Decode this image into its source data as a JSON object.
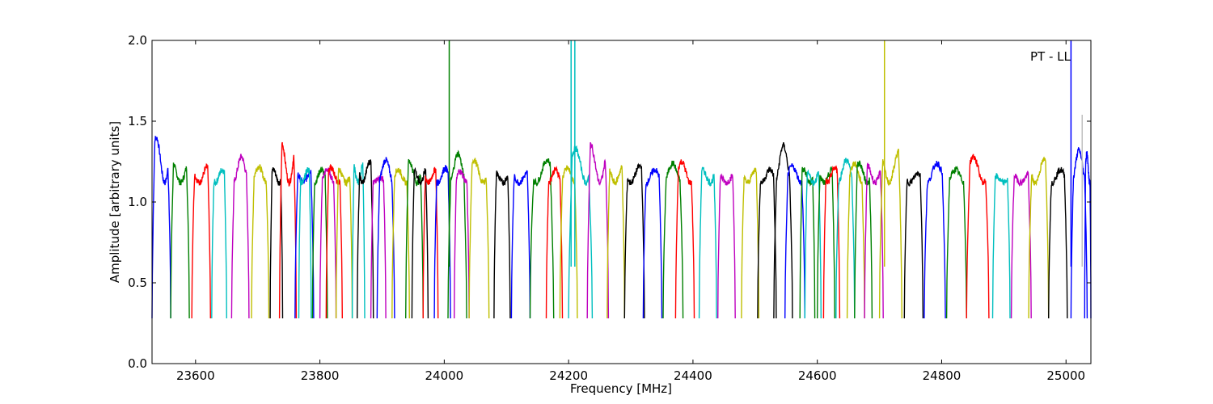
{
  "chart_data": {
    "type": "line",
    "title": "",
    "annotation": "PT - LL",
    "xlabel": "Frequency [MHz]",
    "ylabel": "Amplitude [arbitrary units]",
    "xlim": [
      23530,
      25040
    ],
    "ylim": [
      0.0,
      2.0
    ],
    "xticks": [
      23600,
      23800,
      24000,
      24200,
      24400,
      24600,
      24800,
      25000
    ],
    "yticks": [
      0.0,
      0.5,
      1.0,
      1.5,
      2.0
    ],
    "ytick_labels": [
      "0.0",
      "0.5",
      "1.0",
      "1.5",
      "2.0"
    ],
    "grid": false,
    "legend": "none",
    "color_cycle": [
      "#0000ff",
      "#008000",
      "#ff0000",
      "#00bfbf",
      "#bf00bf",
      "#bfbf00",
      "#000000"
    ],
    "series": [
      {
        "x0": 23530,
        "x1": 23560,
        "peak": 1.4,
        "color": "#0000ff"
      },
      {
        "x0": 23560,
        "x1": 23590,
        "peak": 1.24,
        "color": "#008000"
      },
      {
        "x0": 23594,
        "x1": 23624,
        "peak": 1.22,
        "color": "#ff0000"
      },
      {
        "x0": 23626,
        "x1": 23650,
        "peak": 1.2,
        "color": "#00bfbf"
      },
      {
        "x0": 23658,
        "x1": 23686,
        "peak": 1.28,
        "color": "#bf00bf"
      },
      {
        "x0": 23690,
        "x1": 23718,
        "peak": 1.22,
        "color": "#bfbf00"
      },
      {
        "x0": 23720,
        "x1": 23740,
        "peak": 1.2,
        "color": "#000000"
      },
      {
        "x0": 23735,
        "x1": 23762,
        "peak": 1.37,
        "color": "#ff0000"
      },
      {
        "x0": 23760,
        "x1": 23790,
        "peak": 1.2,
        "color": "#0000ff"
      },
      {
        "x0": 23766,
        "x1": 23786,
        "peak": 1.2,
        "color": "#00bfbf"
      },
      {
        "x0": 23788,
        "x1": 23812,
        "peak": 1.2,
        "color": "#008000"
      },
      {
        "x0": 23800,
        "x1": 23826,
        "peak": 1.2,
        "color": "#bf00bf"
      },
      {
        "x0": 23810,
        "x1": 23836,
        "peak": 1.21,
        "color": "#ff0000"
      },
      {
        "x0": 23826,
        "x1": 23852,
        "peak": 1.2,
        "color": "#bfbf00"
      },
      {
        "x0": 23852,
        "x1": 23872,
        "peak": 1.25,
        "color": "#00bfbf"
      },
      {
        "x0": 23860,
        "x1": 23886,
        "peak": 1.25,
        "color": "#000000"
      },
      {
        "x0": 23882,
        "x1": 23906,
        "peak": 1.15,
        "color": "#bf00bf"
      },
      {
        "x0": 23892,
        "x1": 23920,
        "peak": 1.26,
        "color": "#0000ff"
      },
      {
        "x0": 23916,
        "x1": 23944,
        "peak": 1.2,
        "color": "#bfbf00"
      },
      {
        "x0": 23938,
        "x1": 23966,
        "peak": 1.25,
        "color": "#008000"
      },
      {
        "x0": 23948,
        "x1": 23974,
        "peak": 1.22,
        "color": "#000000"
      },
      {
        "x0": 23966,
        "x1": 23990,
        "peak": 1.2,
        "color": "#ff0000"
      },
      {
        "x0": 23984,
        "x1": 24010,
        "peak": 1.21,
        "color": "#0000ff"
      },
      {
        "x0": 24006,
        "x1": 24036,
        "peak": 1.3,
        "color": "#008000"
      },
      {
        "x0": 24016,
        "x1": 24040,
        "peak": 1.19,
        "color": "#bf00bf"
      },
      {
        "x0": 24040,
        "x1": 24072,
        "peak": 1.26,
        "color": "#bfbf00"
      },
      {
        "x0": 24080,
        "x1": 24106,
        "peak": 1.18,
        "color": "#000000"
      },
      {
        "x0": 24108,
        "x1": 24138,
        "peak": 1.18,
        "color": "#0000ff"
      },
      {
        "x0": 24138,
        "x1": 24176,
        "peak": 1.26,
        "color": "#008000"
      },
      {
        "x0": 24164,
        "x1": 24190,
        "peak": 1.2,
        "color": "#ff0000"
      },
      {
        "x0": 24186,
        "x1": 24214,
        "peak": 1.21,
        "color": "#bfbf00"
      },
      {
        "x0": 24200,
        "x1": 24238,
        "peak": 1.33,
        "color": "#00bfbf"
      },
      {
        "x0": 24230,
        "x1": 24264,
        "peak": 1.36,
        "color": "#bf00bf"
      },
      {
        "x0": 24262,
        "x1": 24290,
        "peak": 1.22,
        "color": "#bfbf00"
      },
      {
        "x0": 24290,
        "x1": 24322,
        "peak": 1.22,
        "color": "#000000"
      },
      {
        "x0": 24320,
        "x1": 24350,
        "peak": 1.2,
        "color": "#0000ff"
      },
      {
        "x0": 24352,
        "x1": 24384,
        "peak": 1.24,
        "color": "#008000"
      },
      {
        "x0": 24372,
        "x1": 24402,
        "peak": 1.25,
        "color": "#ff0000"
      },
      {
        "x0": 24410,
        "x1": 24438,
        "peak": 1.2,
        "color": "#00bfbf"
      },
      {
        "x0": 24440,
        "x1": 24468,
        "peak": 1.17,
        "color": "#bf00bf"
      },
      {
        "x0": 24478,
        "x1": 24506,
        "peak": 1.2,
        "color": "#bfbf00"
      },
      {
        "x0": 24504,
        "x1": 24534,
        "peak": 1.2,
        "color": "#000000"
      },
      {
        "x0": 24530,
        "x1": 24560,
        "peak": 1.35,
        "color": "#000000"
      },
      {
        "x0": 24548,
        "x1": 24580,
        "peak": 1.22,
        "color": "#0000ff"
      },
      {
        "x0": 24572,
        "x1": 24596,
        "peak": 1.2,
        "color": "#008000"
      },
      {
        "x0": 24580,
        "x1": 24606,
        "peak": 1.2,
        "color": "#00bfbf"
      },
      {
        "x0": 24600,
        "x1": 24628,
        "peak": 1.2,
        "color": "#008000"
      },
      {
        "x0": 24610,
        "x1": 24636,
        "peak": 1.21,
        "color": "#ff0000"
      },
      {
        "x0": 24630,
        "x1": 24660,
        "peak": 1.26,
        "color": "#00bfbf"
      },
      {
        "x0": 24648,
        "x1": 24676,
        "peak": 1.24,
        "color": "#bfbf00"
      },
      {
        "x0": 24660,
        "x1": 24688,
        "peak": 1.24,
        "color": "#008000"
      },
      {
        "x0": 24676,
        "x1": 24706,
        "peak": 1.23,
        "color": "#bf00bf"
      },
      {
        "x0": 24700,
        "x1": 24736,
        "peak": 1.32,
        "color": "#bfbf00"
      },
      {
        "x0": 24740,
        "x1": 24770,
        "peak": 1.18,
        "color": "#000000"
      },
      {
        "x0": 24772,
        "x1": 24806,
        "peak": 1.24,
        "color": "#0000ff"
      },
      {
        "x0": 24808,
        "x1": 24840,
        "peak": 1.2,
        "color": "#008000"
      },
      {
        "x0": 24840,
        "x1": 24876,
        "peak": 1.28,
        "color": "#ff0000"
      },
      {
        "x0": 24882,
        "x1": 24910,
        "peak": 1.16,
        "color": "#00bfbf"
      },
      {
        "x0": 24912,
        "x1": 24944,
        "peak": 1.18,
        "color": "#bf00bf"
      },
      {
        "x0": 24940,
        "x1": 24972,
        "peak": 1.26,
        "color": "#bfbf00"
      },
      {
        "x0": 24972,
        "x1": 25002,
        "peak": 1.2,
        "color": "#000000"
      },
      {
        "x0": 25008,
        "x1": 25034,
        "peak": 1.32,
        "color": "#0000ff"
      },
      {
        "x0": 25030,
        "x1": 25040,
        "peak": 1.3,
        "color": "#0000ff"
      }
    ],
    "spikes": [
      {
        "x": 24008,
        "y": 2.0,
        "color": "#008000"
      },
      {
        "x": 24204,
        "y": 2.0,
        "color": "#00bfbf"
      },
      {
        "x": 24210,
        "y": 2.0,
        "color": "#00bfbf"
      },
      {
        "x": 24708,
        "y": 2.0,
        "color": "#bfbf00"
      },
      {
        "x": 25008,
        "y": 2.0,
        "color": "#0000ff"
      },
      {
        "x": 25026,
        "y": 1.54,
        "color": "#bfbfbf"
      }
    ]
  }
}
